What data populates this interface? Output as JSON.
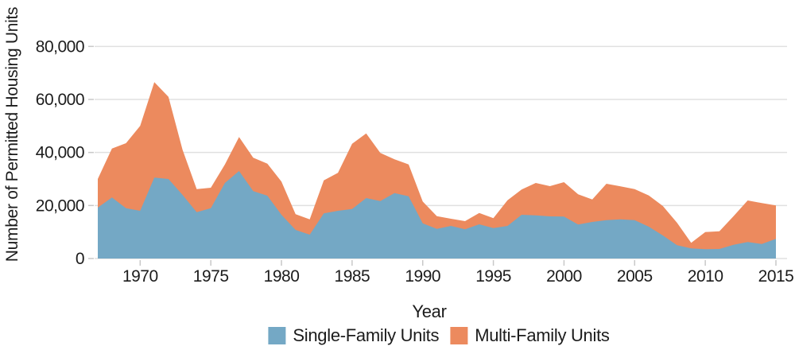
{
  "chart": {
    "y_axis": {
      "title": "Number of Permitted Housing Units",
      "ticks": [
        {
          "value": 0,
          "label": "0"
        },
        {
          "value": 20000,
          "label": "20,000"
        },
        {
          "value": 40000,
          "label": "40,000"
        },
        {
          "value": 60000,
          "label": "60,000"
        },
        {
          "value": 80000,
          "label": "80,000"
        }
      ]
    },
    "x_axis": {
      "title": "Year",
      "tick_years": [
        1970,
        1975,
        1980,
        1985,
        1990,
        1995,
        2000,
        2005,
        2010,
        2015
      ]
    }
  },
  "chart_data": {
    "type": "area",
    "stacked": true,
    "xlabel": "Year",
    "ylabel": "Number of Permitted Housing Units",
    "x": [
      1967,
      1968,
      1969,
      1970,
      1971,
      1972,
      1973,
      1974,
      1975,
      1976,
      1977,
      1978,
      1979,
      1980,
      1981,
      1982,
      1983,
      1984,
      1985,
      1986,
      1987,
      1988,
      1989,
      1990,
      1991,
      1992,
      1993,
      1994,
      1995,
      1996,
      1997,
      1998,
      1999,
      2000,
      2001,
      2002,
      2003,
      2004,
      2005,
      2006,
      2007,
      2008,
      2009,
      2010,
      2011,
      2012,
      2013,
      2014,
      2015
    ],
    "series": [
      {
        "name": "Single-Family Units",
        "color": "#74a8c5",
        "values": [
          19200,
          23000,
          19000,
          18000,
          30500,
          30000,
          24000,
          17500,
          19000,
          28500,
          33000,
          25400,
          23700,
          16500,
          10800,
          9000,
          17000,
          18000,
          18700,
          22800,
          21700,
          24700,
          23500,
          13300,
          11200,
          12300,
          11000,
          12900,
          11500,
          12300,
          16500,
          16300,
          15900,
          15800,
          12800,
          13800,
          14500,
          14800,
          14500,
          12000,
          8700,
          5000,
          3800,
          3500,
          3600,
          5200,
          6200,
          5500,
          7400
        ]
      },
      {
        "name": "Multi-Family Units",
        "color": "#ec8a5e",
        "values": [
          10800,
          18500,
          24500,
          32000,
          36000,
          31000,
          17000,
          8700,
          7700,
          7000,
          12800,
          12600,
          12100,
          12500,
          5900,
          5800,
          12500,
          14300,
          24600,
          24400,
          18100,
          12700,
          12000,
          8200,
          4800,
          2700,
          3100,
          4300,
          3700,
          9700,
          9500,
          12200,
          11400,
          13000,
          11400,
          8500,
          13700,
          12400,
          11700,
          11800,
          11100,
          8500,
          2100,
          6500,
          6700,
          10800,
          15700,
          15400,
          12600
        ]
      }
    ],
    "ylim": [
      0,
      90000
    ],
    "grid": true,
    "legend_position": "bottom"
  },
  "colors": {
    "grid": "#e0e0e0",
    "tick": "#c8c8c8",
    "text": "#1c1c1c",
    "background": "#ffffff",
    "single_family": "#74a8c5",
    "multi_family": "#ec8a5e"
  }
}
